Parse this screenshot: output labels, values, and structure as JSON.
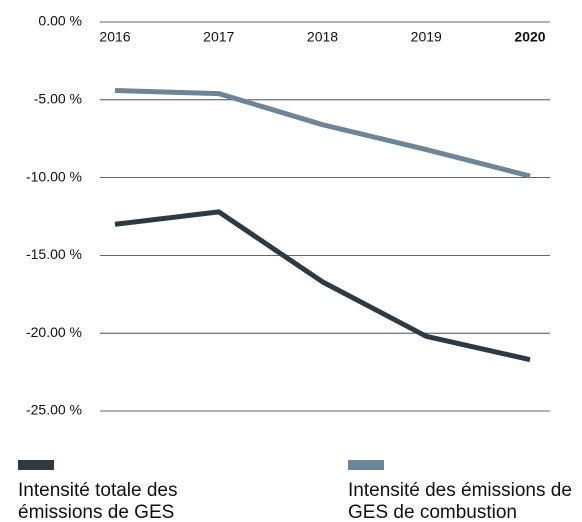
{
  "chart_data": {
    "type": "line",
    "categories": [
      "2016",
      "2017",
      "2018",
      "2019",
      "2020"
    ],
    "highlight_category_index": 4,
    "series": [
      {
        "name": "Intensité totale des émissions de GES",
        "color": "#2e3a43",
        "values": [
          -13.0,
          -12.2,
          -16.7,
          -20.2,
          -21.7
        ]
      },
      {
        "name": "Intensité des émissions de GES de combustion",
        "color": "#6c8599",
        "values": [
          -4.4,
          -4.6,
          -6.6,
          -8.2,
          -9.9
        ]
      }
    ],
    "ylim": [
      -25,
      0
    ],
    "yticks": [
      {
        "value": 0,
        "label": "0.00 %"
      },
      {
        "value": -5,
        "label": "-5.00 %"
      },
      {
        "value": -10,
        "label": "-10.00 %"
      },
      {
        "value": -15,
        "label": "-15.00 %"
      },
      {
        "value": -20,
        "label": "-20.00 %"
      },
      {
        "value": -25,
        "label": "-25.00 %"
      }
    ],
    "grid": true,
    "legend": "bottom"
  }
}
